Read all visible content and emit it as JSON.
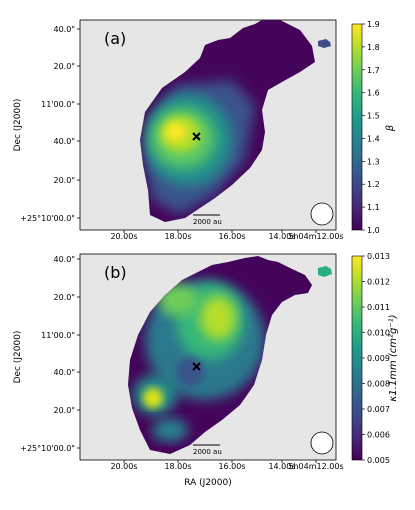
{
  "chart_data": [
    {
      "type": "heatmap",
      "panel_label": "(a)",
      "xlabel": "",
      "ylabel": "Dec (J2000)",
      "x_ticks": [
        "20.00s",
        "18.00s",
        "16.00s",
        "14.00s",
        "5h04m12.00s"
      ],
      "y_ticks": [
        "40.0\"",
        "20.0\"",
        "11'00.0\"",
        "40.0\"",
        "20.0\"",
        "+25°10'00.0\""
      ],
      "colorbar": {
        "label": "β",
        "min": 1.0,
        "max": 1.9,
        "ticks": [
          "1.0",
          "1.1",
          "1.2",
          "1.3",
          "1.4",
          "1.5",
          "1.6",
          "1.7",
          "1.8",
          "1.9"
        ],
        "colormap": "viridis"
      },
      "scale_bar": "2000 au",
      "marker": "x",
      "peak_value": 1.9,
      "grid": false
    },
    {
      "type": "heatmap",
      "panel_label": "(b)",
      "xlabel": "RA (J2000)",
      "ylabel": "Dec (J2000)",
      "x_ticks": [
        "20.00s",
        "18.00s",
        "16.00s",
        "14.00s",
        "5h04m12.00s"
      ],
      "y_ticks": [
        "40.0\"",
        "20.0\"",
        "11'00.0\"",
        "40.0\"",
        "20.0\"",
        "+25°10'00.0\""
      ],
      "colorbar": {
        "label": "κ1.1mm (cm²g⁻¹)",
        "min": 0.005,
        "max": 0.013,
        "ticks": [
          "0.005",
          "0.006",
          "0.007",
          "0.008",
          "0.009",
          "0.010",
          "0.011",
          "0.012",
          "0.013"
        ],
        "colormap": "viridis"
      },
      "scale_bar": "2000 au",
      "marker": "x",
      "peak_value": 0.012,
      "grid": false
    }
  ],
  "colors": {
    "background": "#e6e6e6",
    "viridis_stops": [
      "#440154",
      "#482878",
      "#3e4989",
      "#31688e",
      "#26828e",
      "#1f9e89",
      "#35b779",
      "#6ece58",
      "#b5de2b",
      "#fde725"
    ]
  }
}
